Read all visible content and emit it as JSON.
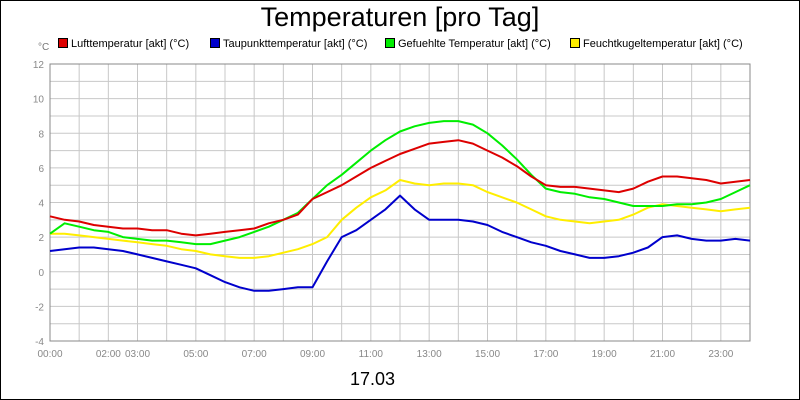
{
  "chart_data": {
    "type": "line",
    "title": "Temperaturen [pro Tag]",
    "xlabel": "17.03",
    "ylabel": "°C",
    "ylim": [
      -4,
      12
    ],
    "xlim": [
      0,
      24
    ],
    "grid": true,
    "legend_position": "top",
    "y_ticks": [
      "12",
      "10",
      "8",
      "6",
      "4",
      "2",
      "0",
      "-2",
      "-4"
    ],
    "y_tick_values": [
      12,
      10,
      8,
      6,
      4,
      2,
      0,
      -2,
      -4
    ],
    "x_ticks": [
      "00:00",
      "02:00",
      "03:00",
      "05:00",
      "07:00",
      "09:00",
      "11:00",
      "13:00",
      "15:00",
      "17:00",
      "19:00",
      "21:00",
      "23:00"
    ],
    "x_tick_values": [
      0,
      2,
      3,
      5,
      7,
      9,
      11,
      13,
      15,
      17,
      19,
      21,
      23
    ],
    "x": [
      0,
      0.5,
      1,
      1.5,
      2,
      2.5,
      3,
      3.5,
      4,
      4.5,
      5,
      5.5,
      6,
      6.5,
      7,
      7.5,
      8,
      8.5,
      9,
      9.5,
      10,
      10.5,
      11,
      11.5,
      12,
      12.5,
      13,
      13.5,
      14,
      14.5,
      15,
      15.5,
      16,
      16.5,
      17,
      17.5,
      18,
      18.5,
      19,
      19.5,
      20,
      20.5,
      21,
      21.5,
      22,
      22.5,
      23,
      23.5,
      24
    ],
    "series": [
      {
        "name": "Lufttemperatur [akt] (°C)",
        "color": "#dd0000",
        "values": [
          3.2,
          3.0,
          2.9,
          2.7,
          2.6,
          2.5,
          2.5,
          2.4,
          2.4,
          2.2,
          2.1,
          2.2,
          2.3,
          2.4,
          2.5,
          2.8,
          3.0,
          3.3,
          4.2,
          4.6,
          5.0,
          5.5,
          6.0,
          6.4,
          6.8,
          7.1,
          7.4,
          7.5,
          7.6,
          7.4,
          7.0,
          6.6,
          6.1,
          5.5,
          5.0,
          4.9,
          4.9,
          4.8,
          4.7,
          4.6,
          4.8,
          5.2,
          5.5,
          5.5,
          5.4,
          5.3,
          5.1,
          5.2,
          5.3
        ]
      },
      {
        "name": "Taupunkttemperatur [akt] (°C)",
        "color": "#0000cc",
        "values": [
          1.2,
          1.3,
          1.4,
          1.4,
          1.3,
          1.2,
          1.0,
          0.8,
          0.6,
          0.4,
          0.2,
          -0.2,
          -0.6,
          -0.9,
          -1.1,
          -1.1,
          -1.0,
          -0.9,
          -0.9,
          0.6,
          2.0,
          2.4,
          3.0,
          3.6,
          4.4,
          3.6,
          3.0,
          3.0,
          3.0,
          2.9,
          2.7,
          2.3,
          2.0,
          1.7,
          1.5,
          1.2,
          1.0,
          0.8,
          0.8,
          0.9,
          1.1,
          1.4,
          2.0,
          2.1,
          1.9,
          1.8,
          1.8,
          1.9,
          1.8
        ]
      },
      {
        "name": "Gefuehlte Temperatur [akt] (°C)",
        "color": "#00ee00",
        "values": [
          2.2,
          2.8,
          2.6,
          2.4,
          2.3,
          2.0,
          1.9,
          1.8,
          1.8,
          1.7,
          1.6,
          1.6,
          1.8,
          2.0,
          2.3,
          2.6,
          3.0,
          3.4,
          4.2,
          5.0,
          5.6,
          6.3,
          7.0,
          7.6,
          8.1,
          8.4,
          8.6,
          8.7,
          8.7,
          8.5,
          8.0,
          7.3,
          6.5,
          5.6,
          4.8,
          4.6,
          4.5,
          4.3,
          4.2,
          4.0,
          3.8,
          3.8,
          3.8,
          3.9,
          3.9,
          4.0,
          4.2,
          4.6,
          5.0
        ]
      },
      {
        "name": "Feuchtkugeltemperatur [akt] (°C)",
        "color": "#ffee00",
        "values": [
          2.2,
          2.2,
          2.1,
          2.0,
          1.9,
          1.8,
          1.7,
          1.6,
          1.5,
          1.3,
          1.2,
          1.0,
          0.9,
          0.8,
          0.8,
          0.9,
          1.1,
          1.3,
          1.6,
          2.0,
          3.0,
          3.7,
          4.3,
          4.7,
          5.3,
          5.1,
          5.0,
          5.1,
          5.1,
          5.0,
          4.6,
          4.3,
          4.0,
          3.6,
          3.2,
          3.0,
          2.9,
          2.8,
          2.9,
          3.0,
          3.3,
          3.7,
          3.9,
          3.8,
          3.7,
          3.6,
          3.5,
          3.6,
          3.7
        ]
      }
    ]
  }
}
